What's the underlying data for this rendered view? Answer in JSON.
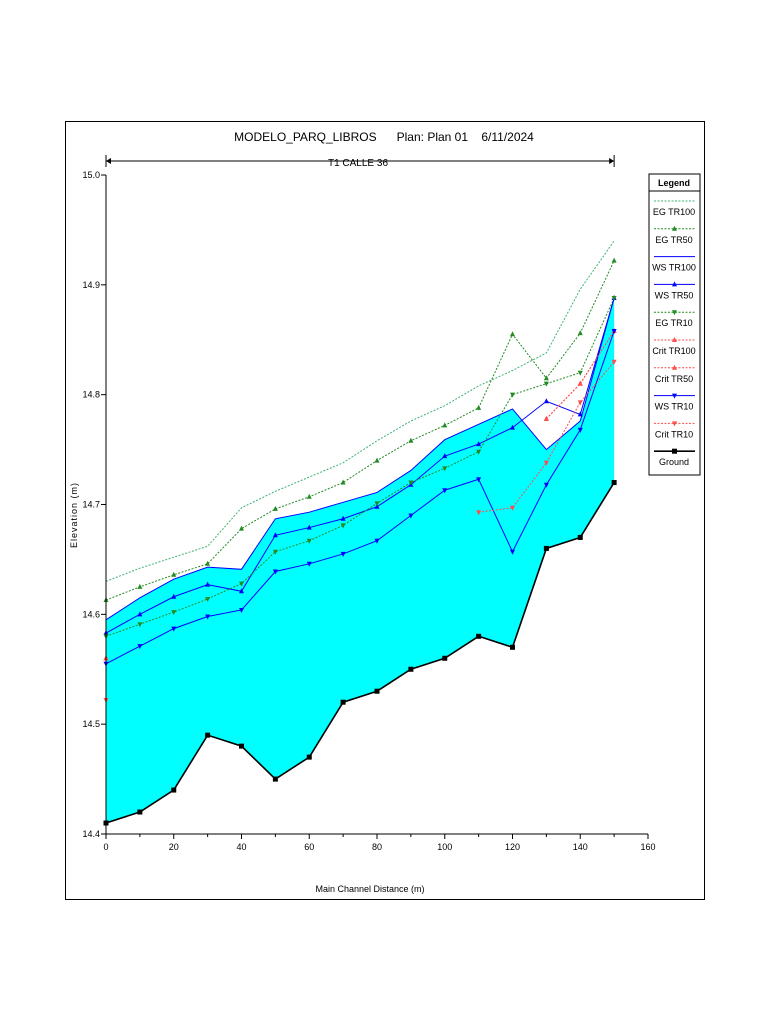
{
  "chart_data": {
    "type": "line",
    "title": "MODELO_PARQ_LIBROS      Plan: Plan 01    6/11/2024",
    "reach_label": "T1 CALLE 36",
    "xlabel": "Main Channel Distance (m)",
    "ylabel": "Elevation (m)",
    "xlim": [
      0,
      160
    ],
    "ylim": [
      14.4,
      15.0
    ],
    "x_ticks": [
      0,
      20,
      40,
      60,
      80,
      100,
      120,
      140,
      160
    ],
    "y_ticks": [
      14.4,
      14.5,
      14.6,
      14.7,
      14.8,
      14.9,
      15.0
    ],
    "grid": false,
    "legend_title": "Legend",
    "legend_position": "right",
    "fill_color": "#00ffff",
    "reach_span": [
      0,
      150
    ],
    "x": [
      0,
      10,
      20,
      30,
      40,
      50,
      60,
      70,
      80,
      90,
      100,
      110,
      120,
      130,
      140,
      150
    ],
    "series": [
      {
        "name": "EG  TR100",
        "color": "#3cb371",
        "style": "dotted",
        "marker": "none",
        "values": [
          14.63,
          14.642,
          14.652,
          14.662,
          14.697,
          14.712,
          14.725,
          14.738,
          14.758,
          14.776,
          14.79,
          14.808,
          14.822,
          14.838,
          14.896,
          14.94
        ]
      },
      {
        "name": "EG  TR50",
        "color": "#228b22",
        "style": "dotted",
        "marker": "tri-up",
        "values": [
          14.613,
          14.625,
          14.636,
          14.646,
          14.678,
          14.696,
          14.707,
          14.72,
          14.74,
          14.758,
          14.772,
          14.788,
          14.855,
          14.815,
          14.856,
          14.922
        ]
      },
      {
        "name": "WS  TR100",
        "color": "#0000ff",
        "style": "solid",
        "marker": "none",
        "values": [
          14.595,
          14.615,
          14.632,
          14.643,
          14.641,
          14.687,
          14.693,
          14.702,
          14.711,
          14.731,
          14.759,
          14.773,
          14.787,
          14.75,
          14.776,
          14.888
        ]
      },
      {
        "name": "WS  TR50",
        "color": "#0000ff",
        "style": "solid",
        "marker": "tri-up",
        "values": [
          14.583,
          14.6,
          14.616,
          14.627,
          14.621,
          14.672,
          14.679,
          14.687,
          14.698,
          14.718,
          14.744,
          14.755,
          14.77,
          14.794,
          14.782,
          14.888
        ]
      },
      {
        "name": "EG  TR10",
        "color": "#228b22",
        "style": "dotted",
        "marker": "tri-down",
        "values": [
          14.58,
          14.591,
          14.602,
          14.614,
          14.628,
          14.657,
          14.667,
          14.681,
          14.701,
          14.72,
          14.733,
          14.748,
          14.8,
          14.81,
          14.82,
          14.888
        ]
      },
      {
        "name": "Crit  TR100",
        "color": "#ff4d4d",
        "style": "dotted",
        "marker": "tri-up",
        "values": [
          14.56,
          null,
          null,
          null,
          null,
          null,
          null,
          null,
          null,
          null,
          null,
          null,
          null,
          14.778,
          14.81,
          14.858
        ]
      },
      {
        "name": "Crit  TR50",
        "color": "#ff4d4d",
        "style": "dotted",
        "marker": "tri-up",
        "values": [
          14.56,
          null,
          null,
          null,
          null,
          null,
          null,
          null,
          null,
          null,
          null,
          null,
          null,
          14.778,
          14.81,
          14.858
        ]
      },
      {
        "name": "WS  TR10",
        "color": "#0000ff",
        "style": "solid",
        "marker": "tri-down",
        "values": [
          14.555,
          14.571,
          14.587,
          14.598,
          14.604,
          14.639,
          14.646,
          14.655,
          14.667,
          14.69,
          14.713,
          14.723,
          14.657,
          14.718,
          14.768,
          14.858
        ]
      },
      {
        "name": "Crit  TR10",
        "color": "#ff4d4d",
        "style": "dotted",
        "marker": "tri-down",
        "values": [
          14.522,
          null,
          null,
          null,
          null,
          null,
          null,
          null,
          null,
          null,
          null,
          14.693,
          14.697,
          14.738,
          14.793,
          14.83
        ]
      },
      {
        "name": "Ground",
        "color": "#000000",
        "style": "solid",
        "marker": "square",
        "values": [
          14.41,
          14.42,
          14.44,
          14.49,
          14.48,
          14.45,
          14.47,
          14.52,
          14.53,
          14.55,
          14.56,
          14.58,
          14.57,
          14.66,
          14.67,
          14.72
        ]
      }
    ]
  }
}
